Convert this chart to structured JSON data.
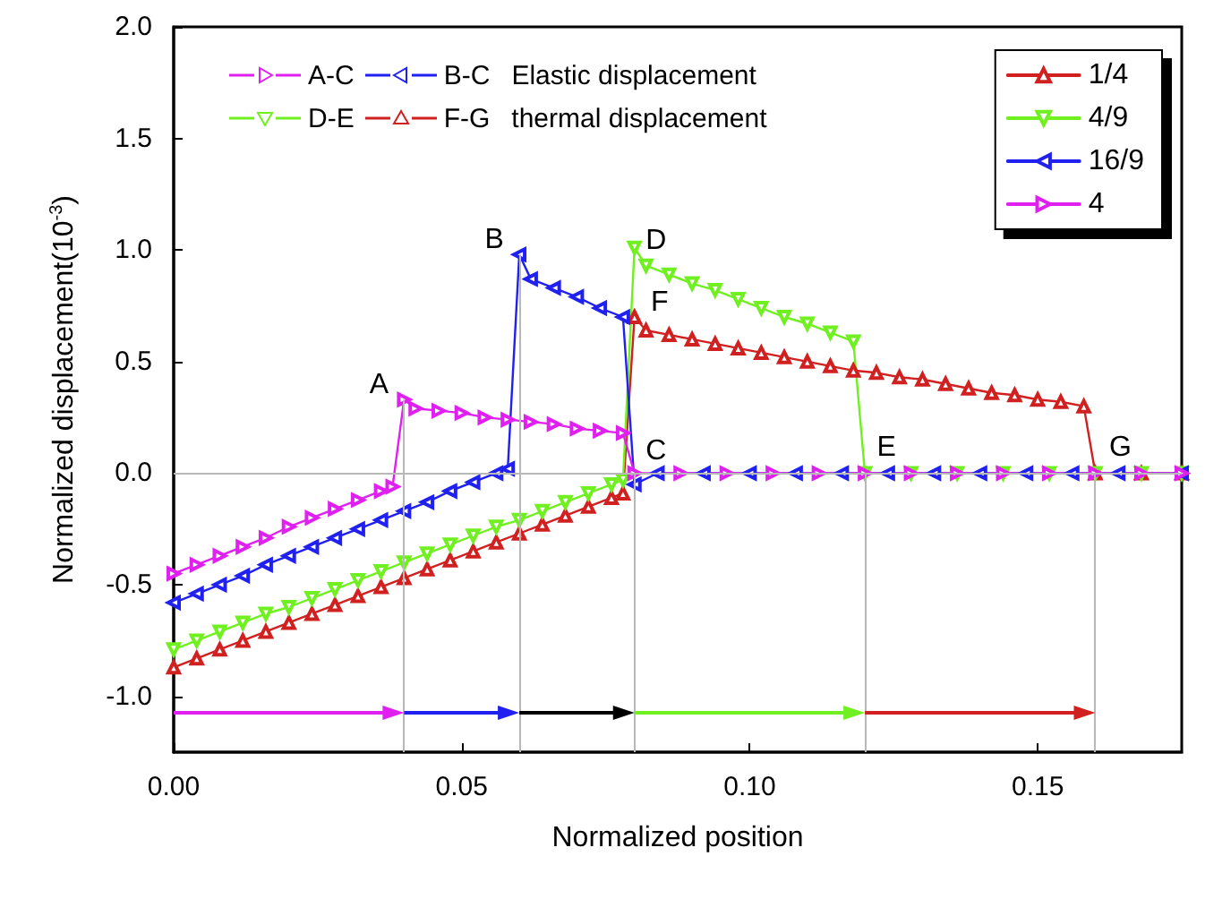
{
  "chart_data": {
    "type": "line",
    "xlabel": "Normalized position",
    "ylabel": "Normalized displacement(10$^{-3}$)",
    "xlim": [
      0,
      0.175
    ],
    "xticks": [
      {
        "value": 0,
        "label": "0.00"
      },
      {
        "value": 0.05,
        "label": "0.05"
      },
      {
        "value": 0.1,
        "label": "0.10"
      },
      {
        "value": 0.15,
        "label": "0.15"
      }
    ],
    "ylim": [
      -1.25,
      2.0
    ],
    "yticks": [
      {
        "value": -1,
        "label": "-1.0"
      },
      {
        "value": -0.5,
        "label": "-0.5"
      },
      {
        "value": 0,
        "label": "0.0"
      },
      {
        "value": 0.5,
        "label": "0.5"
      },
      {
        "value": 1,
        "label": "1.0"
      },
      {
        "value": 1.5,
        "label": "1.5"
      },
      {
        "value": 2,
        "label": "2.0"
      }
    ],
    "grid": false,
    "legend": "top right",
    "marker": "triangle",
    "line_style": "solid",
    "series": [
      {
        "name": "1/4",
        "color": "#d02020",
        "x": [
          0,
          0.004,
          0.008,
          0.012,
          0.016,
          0.02,
          0.024,
          0.028,
          0.032,
          0.036,
          0.04,
          0.044,
          0.048,
          0.052,
          0.056,
          0.06,
          0.064,
          0.068,
          0.072,
          0.076,
          0.078,
          0.08,
          0.082,
          0.086,
          0.09,
          0.094,
          0.098,
          0.102,
          0.106,
          0.11,
          0.114,
          0.118,
          0.122,
          0.126,
          0.13,
          0.134,
          0.138,
          0.142,
          0.146,
          0.15,
          0.154,
          0.158,
          0.16,
          0.168,
          0.175
        ],
        "values": [
          -0.87,
          -0.83,
          -0.79,
          -0.75,
          -0.71,
          -0.67,
          -0.63,
          -0.59,
          -0.55,
          -0.51,
          -0.47,
          -0.43,
          -0.39,
          -0.35,
          -0.31,
          -0.27,
          -0.23,
          -0.19,
          -0.15,
          -0.11,
          -0.09,
          0.7,
          0.64,
          0.62,
          0.6,
          0.58,
          0.56,
          0.54,
          0.52,
          0.5,
          0.48,
          0.46,
          0.45,
          0.43,
          0.42,
          0.4,
          0.38,
          0.36,
          0.35,
          0.33,
          0.32,
          0.3,
          0,
          0,
          0
        ]
      },
      {
        "name": "4/9",
        "color": "#70f020",
        "x": [
          0,
          0.004,
          0.008,
          0.012,
          0.016,
          0.02,
          0.024,
          0.028,
          0.032,
          0.036,
          0.04,
          0.044,
          0.048,
          0.052,
          0.056,
          0.06,
          0.064,
          0.068,
          0.072,
          0.076,
          0.078,
          0.08,
          0.082,
          0.086,
          0.09,
          0.094,
          0.098,
          0.102,
          0.106,
          0.11,
          0.114,
          0.118,
          0.12,
          0.128,
          0.136,
          0.144,
          0.152,
          0.16,
          0.168,
          0.175
        ],
        "values": [
          -0.79,
          -0.75,
          -0.71,
          -0.67,
          -0.63,
          -0.6,
          -0.56,
          -0.52,
          -0.48,
          -0.44,
          -0.4,
          -0.36,
          -0.32,
          -0.28,
          -0.24,
          -0.21,
          -0.17,
          -0.13,
          -0.09,
          -0.05,
          -0.03,
          1.01,
          0.93,
          0.89,
          0.85,
          0.82,
          0.78,
          0.74,
          0.7,
          0.67,
          0.63,
          0.59,
          0,
          0,
          0,
          0,
          0,
          0,
          0,
          0
        ]
      },
      {
        "name": "16/9",
        "color": "#2020f0",
        "x": [
          0,
          0.004,
          0.008,
          0.012,
          0.016,
          0.02,
          0.024,
          0.028,
          0.032,
          0.036,
          0.04,
          0.044,
          0.048,
          0.052,
          0.056,
          0.058,
          0.06,
          0.062,
          0.066,
          0.07,
          0.074,
          0.078,
          0.08,
          0.084,
          0.092,
          0.1,
          0.108,
          0.116,
          0.124,
          0.132,
          0.14,
          0.148,
          0.156,
          0.164,
          0.175
        ],
        "values": [
          -0.58,
          -0.54,
          -0.5,
          -0.46,
          -0.41,
          -0.37,
          -0.33,
          -0.29,
          -0.25,
          -0.21,
          -0.17,
          -0.13,
          -0.08,
          -0.04,
          0.0,
          0.02,
          0.98,
          0.87,
          0.83,
          0.79,
          0.74,
          0.7,
          -0.05,
          0,
          0,
          0,
          0,
          0,
          0,
          0,
          0,
          0,
          0,
          0,
          0
        ]
      },
      {
        "name": "4",
        "color": "#e020f0",
        "x": [
          0,
          0.004,
          0.008,
          0.012,
          0.016,
          0.02,
          0.024,
          0.028,
          0.032,
          0.036,
          0.038,
          0.04,
          0.042,
          0.046,
          0.05,
          0.054,
          0.058,
          0.062,
          0.066,
          0.07,
          0.074,
          0.078,
          0.08,
          0.088,
          0.096,
          0.104,
          0.112,
          0.12,
          0.128,
          0.136,
          0.144,
          0.152,
          0.16,
          0.168,
          0.175
        ],
        "values": [
          -0.45,
          -0.41,
          -0.37,
          -0.33,
          -0.29,
          -0.24,
          -0.2,
          -0.16,
          -0.12,
          -0.08,
          -0.06,
          0.33,
          0.29,
          0.28,
          0.27,
          0.25,
          0.24,
          0.23,
          0.22,
          0.2,
          0.19,
          0.18,
          0,
          0,
          0,
          0,
          0,
          0,
          0,
          0,
          0,
          0,
          0,
          0,
          0
        ]
      }
    ],
    "ref_lines": [
      {
        "axis": "y",
        "value": 0,
        "color": "#b8b8b8"
      },
      {
        "axis": "x",
        "value": 0.04,
        "color": "#b8b8b8"
      },
      {
        "axis": "x",
        "value": 0.06,
        "color": "#b8b8b8"
      },
      {
        "axis": "x",
        "value": 0.08,
        "color": "#b8b8b8"
      },
      {
        "axis": "x",
        "value": 0.12,
        "color": "#b8b8b8"
      },
      {
        "axis": "x",
        "value": 0.16,
        "color": "#b8b8b8"
      }
    ],
    "annotations": [
      "A-C",
      "B-C",
      "Elastic displacement",
      "D-E",
      "F-G",
      "thermal displacement",
      {
        "text": "A",
        "x": 0.04,
        "y": 0.33
      },
      {
        "text": "B",
        "x": 0.06,
        "y": 0.98
      },
      {
        "text": "C",
        "x": 0.08,
        "y": 0
      },
      {
        "text": "D",
        "x": 0.08,
        "y": 1.01
      },
      {
        "text": "E",
        "x": 0.12,
        "y": 0
      },
      {
        "text": "F",
        "x": 0.08,
        "y": 0.7
      },
      {
        "text": "G",
        "x": 0.16,
        "y": 0
      }
    ]
  }
}
